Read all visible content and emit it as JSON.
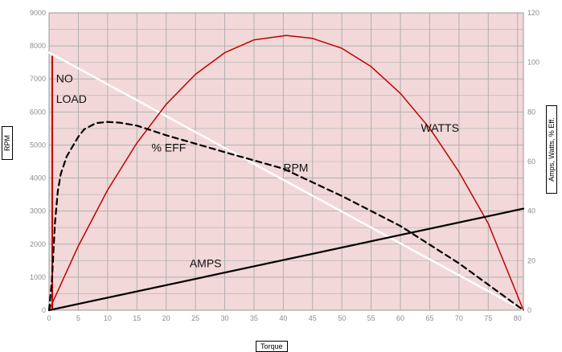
{
  "chart_data": {
    "type": "line",
    "title": "",
    "xlabel": "Torque",
    "ylabel": "RPM",
    "y2label": "Amps, Watts, % Eff.",
    "xlim": [
      0,
      81
    ],
    "ylim": [
      0,
      9000
    ],
    "y2lim": [
      0,
      120
    ],
    "x_ticks": [
      0,
      5,
      10,
      15,
      20,
      25,
      30,
      35,
      40,
      45,
      50,
      55,
      60,
      65,
      70,
      75,
      80
    ],
    "y_ticks": [
      0,
      1000,
      2000,
      3000,
      4000,
      5000,
      6000,
      7000,
      8000,
      9000
    ],
    "y2_ticks": [
      0,
      20,
      40,
      60,
      80,
      100,
      120
    ],
    "grid": true,
    "colors": {
      "plot_bg": "#f2d8d8",
      "grid": "#b0b0b0",
      "rpm": "#ffffff",
      "watts": "#c00000",
      "eff": "#000000",
      "amps": "#000000"
    },
    "series": [
      {
        "name": "RPM",
        "axis": "left",
        "style": "solid",
        "x": [
          0,
          81
        ],
        "values": [
          7800,
          0
        ]
      },
      {
        "name": "WATTS",
        "axis": "right",
        "style": "solid",
        "x": [
          0,
          5,
          10,
          15,
          20,
          25,
          30,
          35,
          40.5,
          45,
          50,
          55,
          60,
          65,
          70,
          75,
          81
        ],
        "values": [
          0,
          25.9,
          48.5,
          67.5,
          83.1,
          95.2,
          103.9,
          109.1,
          110.9,
          109.7,
          105.7,
          98.3,
          87.5,
          73.4,
          55.8,
          35.0,
          0
        ]
      },
      {
        "name": "% EFF",
        "axis": "right",
        "style": "dashed",
        "x": [
          0,
          0.5,
          1,
          1.5,
          2,
          3,
          4,
          5,
          6,
          8,
          10,
          12,
          15,
          20,
          30,
          40,
          50,
          60,
          70,
          81
        ],
        "values": [
          0,
          12,
          35,
          48,
          55,
          62,
          66,
          70,
          73,
          75.5,
          76,
          75.7,
          74.5,
          70.6,
          63.8,
          57.1,
          46.1,
          34.0,
          18.9,
          0
        ]
      },
      {
        "name": "AMPS",
        "axis": "right",
        "style": "solid",
        "x": [
          0,
          81
        ],
        "values": [
          0,
          41
        ]
      }
    ],
    "annotations": [
      {
        "text": "NO",
        "x": 1.2,
        "y": 6900,
        "axis": "left"
      },
      {
        "text": "LOAD",
        "x": 1.2,
        "y": 6280,
        "axis": "left"
      },
      {
        "text": "WATTS",
        "x": 63.5,
        "y": 72,
        "axis": "right"
      },
      {
        "text": "% EFF",
        "x": 17.5,
        "y": 64,
        "axis": "right"
      },
      {
        "text": "RPM",
        "x": 40,
        "y": 4190,
        "axis": "left"
      },
      {
        "text": "AMPS",
        "x": 24,
        "y": 1300,
        "axis": "left"
      }
    ],
    "no_load_marker": {
      "x": 0.55,
      "y_from": 0,
      "y_to": 7700
    }
  }
}
